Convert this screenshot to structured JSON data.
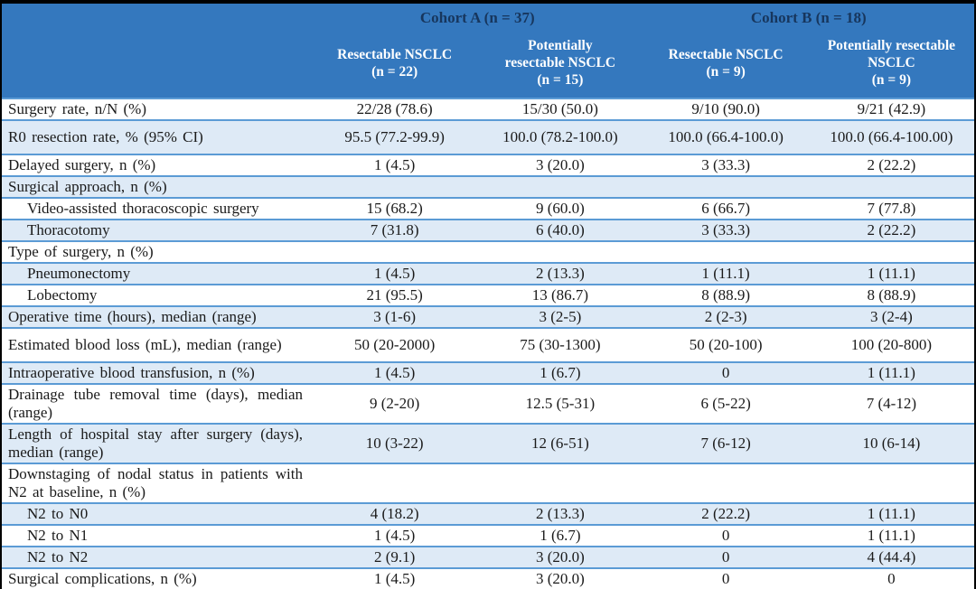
{
  "colors": {
    "frame_bg": "#000000",
    "header_bg": "#3478BE",
    "header_group_text": "#17365D",
    "header_col_text": "#FFFFFF",
    "row_alt_bg": "#DEEAF6",
    "row_border": "#5B9BD5",
    "body_text": "#1A1A1A"
  },
  "table": {
    "header": {
      "groups": [
        {
          "label": "Cohort A (n = 37)",
          "span": 2
        },
        {
          "label": "Cohort B (n = 18)",
          "span": 2
        }
      ],
      "columns": [
        "Resectable NSCLC\n(n = 22)",
        "Potentially\nresectable NSCLC\n(n = 15)",
        "Resectable NSCLC\n(n = 9)",
        "Potentially resectable\nNSCLC\n(n = 9)"
      ]
    },
    "rows": [
      {
        "label": "Surgery rate, n/N (%)",
        "indent": false,
        "values": [
          "22/28 (78.6)",
          "15/30 (50.0)",
          "9/10 (90.0)",
          "9/21 (42.9)"
        ]
      },
      {
        "label": "R0 resection rate, % (95% CI)",
        "indent": false,
        "values": [
          "95.5 (77.2-99.9)",
          "100.0 (78.2-100.0)",
          "100.0 (66.4-100.0)",
          "100.0 (66.4-100.00)"
        ]
      },
      {
        "label": "Delayed surgery, n (%)",
        "indent": false,
        "values": [
          "1 (4.5)",
          "3 (20.0)",
          "3 (33.3)",
          "2 (22.2)"
        ]
      },
      {
        "label": "Surgical approach, n (%)",
        "indent": false,
        "values": [
          "",
          "",
          "",
          ""
        ]
      },
      {
        "label": "Video-assisted thoracoscopic surgery",
        "indent": true,
        "values": [
          "15 (68.2)",
          "9 (60.0)",
          "6 (66.7)",
          "7 (77.8)"
        ]
      },
      {
        "label": "Thoracotomy",
        "indent": true,
        "values": [
          "7 (31.8)",
          "6 (40.0)",
          "3 (33.3)",
          "2 (22.2)"
        ]
      },
      {
        "label": "Type of surgery, n (%)",
        "indent": false,
        "values": [
          "",
          "",
          "",
          ""
        ]
      },
      {
        "label": "Pneumonectomy",
        "indent": true,
        "values": [
          "1 (4.5)",
          "2 (13.3)",
          "1 (11.1)",
          "1 (11.1)"
        ]
      },
      {
        "label": "Lobectomy",
        "indent": true,
        "values": [
          "21 (95.5)",
          "13 (86.7)",
          "8 (88.9)",
          "8 (88.9)"
        ]
      },
      {
        "label": "Operative time (hours), median (range)",
        "indent": false,
        "values": [
          "3 (1-6)",
          "3 (2-5)",
          "2 (2-3)",
          "3 (2-4)"
        ]
      },
      {
        "label": "Estimated blood loss (mL), median (range)",
        "indent": false,
        "values": [
          "50 (20-2000)",
          "75 (30-1300)",
          "50 (20-100)",
          "100 (20-800)"
        ]
      },
      {
        "label": "Intraoperative blood transfusion, n (%)",
        "indent": false,
        "values": [
          "1 (4.5)",
          "1 (6.7)",
          "0",
          "1 (11.1)"
        ]
      },
      {
        "label": "Drainage tube removal time (days), median (range)",
        "indent": false,
        "values": [
          "9 (2-20)",
          "12.5 (5-31)",
          "6 (5-22)",
          "7 (4-12)"
        ]
      },
      {
        "label": "Length of hospital stay after surgery (days), median (range)",
        "indent": false,
        "values": [
          "10 (3-22)",
          "12 (6-51)",
          "7 (6-12)",
          "10 (6-14)"
        ]
      },
      {
        "label": "Downstaging of nodal status in patients with N2 at baseline, n (%)",
        "indent": false,
        "values": [
          "",
          "",
          "",
          ""
        ]
      },
      {
        "label": "N2 to N0",
        "indent": true,
        "values": [
          "4 (18.2)",
          "2 (13.3)",
          "2 (22.2)",
          "1 (11.1)"
        ]
      },
      {
        "label": "N2 to N1",
        "indent": true,
        "values": [
          "1 (4.5)",
          "1 (6.7)",
          "0",
          "1 (11.1)"
        ]
      },
      {
        "label": "N2 to N2",
        "indent": true,
        "values": [
          "2 (9.1)",
          "3 (20.0)",
          "0",
          "4 (44.4)"
        ]
      },
      {
        "label": "Surgical complications, n (%)",
        "indent": false,
        "values": [
          "1 (4.5)",
          "3 (20.0)",
          "0",
          "0"
        ]
      }
    ]
  }
}
